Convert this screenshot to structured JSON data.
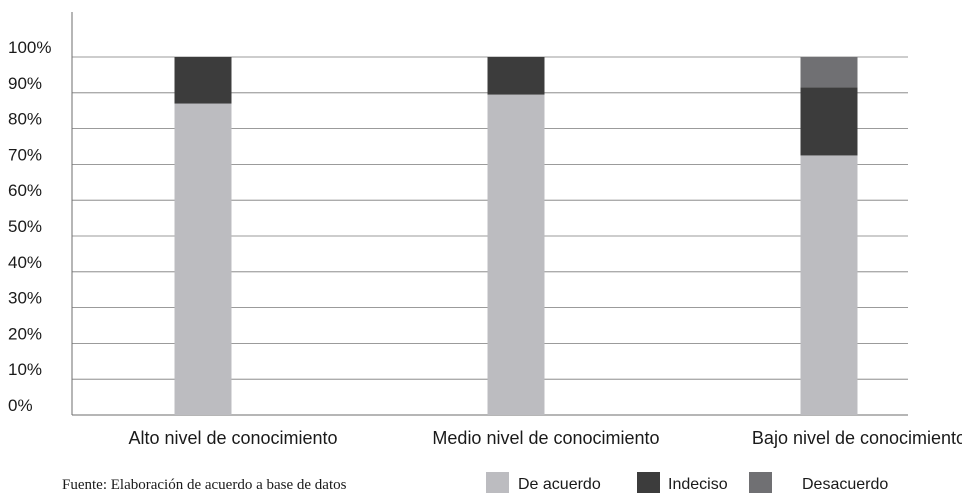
{
  "chart_data": {
    "type": "bar",
    "stacked": true,
    "categories": [
      "Alto nivel de conocimiento",
      "Medio nivel de conocimiento",
      "Bajo nivel de conocimiento"
    ],
    "series": [
      {
        "name": "De acuerdo",
        "values": [
          87,
          89.5,
          72.5
        ],
        "color": "#bcbcc0"
      },
      {
        "name": "Indeciso",
        "values": [
          13,
          10.5,
          19
        ],
        "color": "#3c3c3c"
      },
      {
        "name": "Desacuerdo",
        "values": [
          0,
          0,
          8.5
        ],
        "color": "#707073"
      }
    ],
    "y_ticks": [
      "0%",
      "10%",
      "20%",
      "30%",
      "40%",
      "50%",
      "60%",
      "70%",
      "80%",
      "90%",
      "100%"
    ],
    "ylim": [
      0,
      100
    ],
    "grid": true,
    "legend_position": "bottom-right",
    "source_note": "Fuente: Elaboración de acuerdo a base de datos"
  }
}
